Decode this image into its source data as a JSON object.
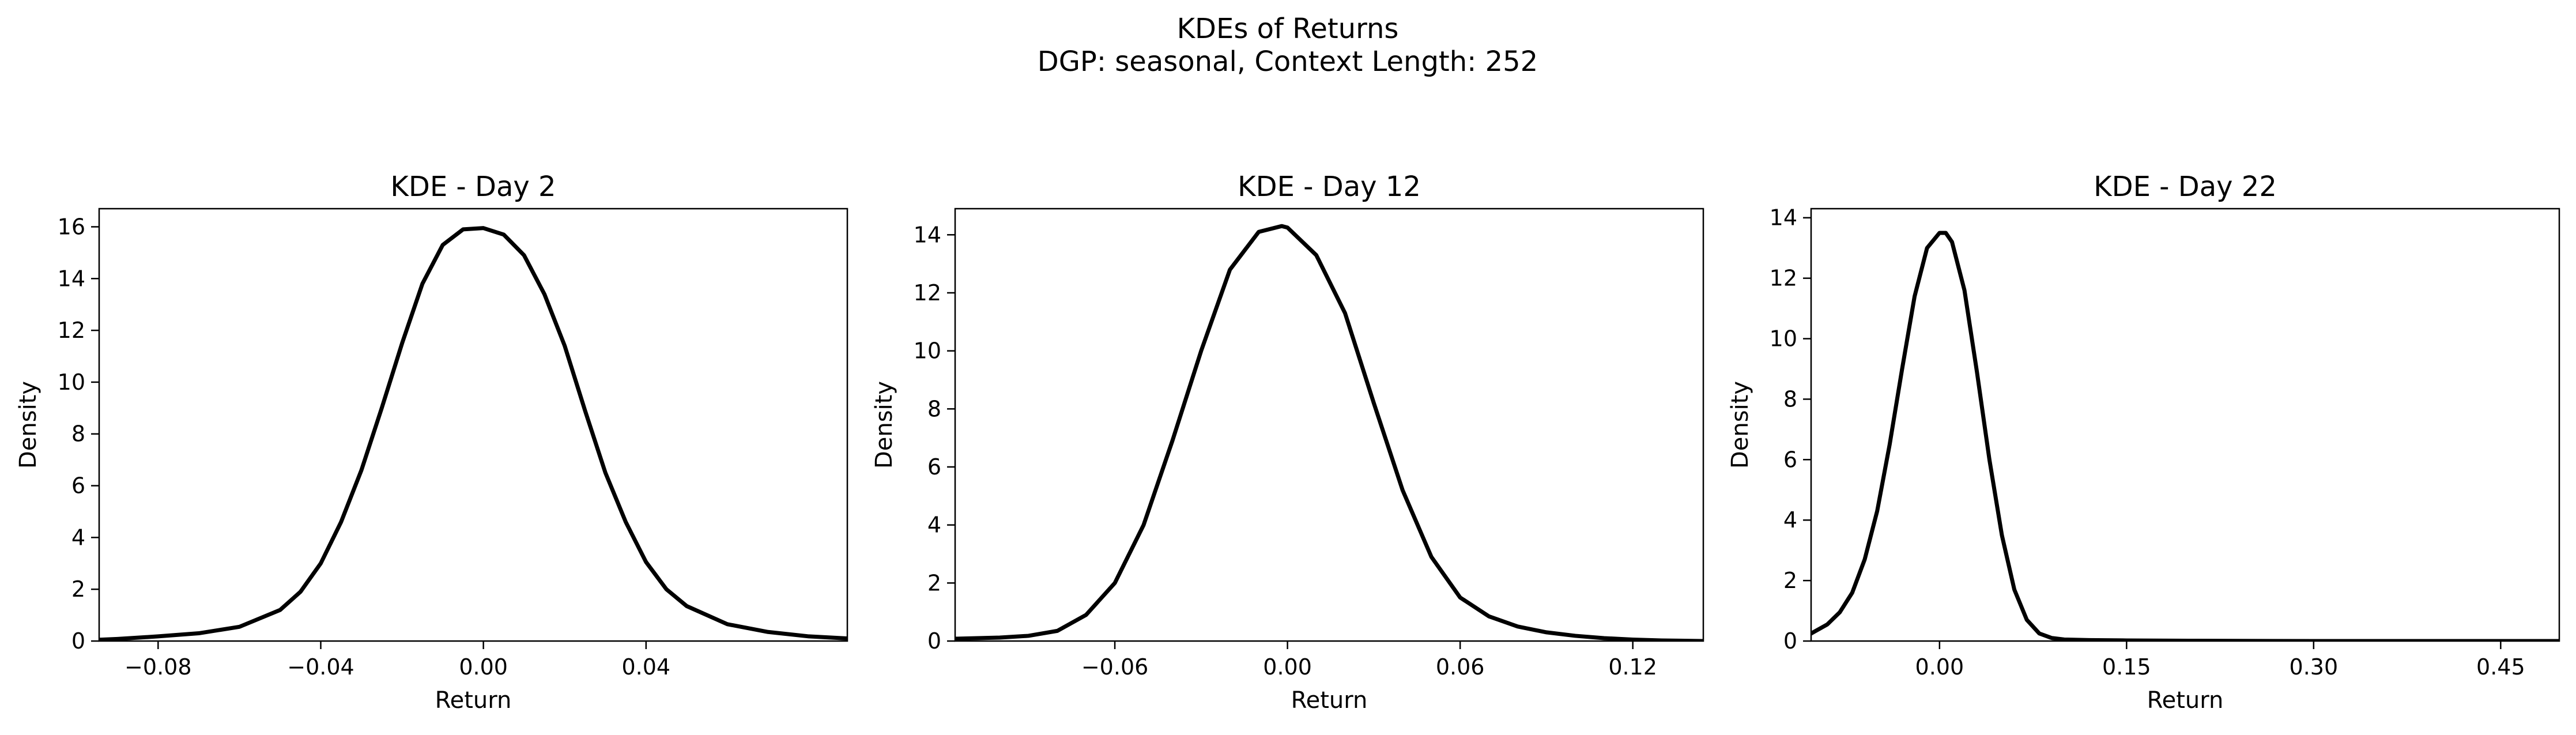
{
  "figure": {
    "title": "KDEs of Returns",
    "subtitle": "DGP: seasonal, Context Length: 252"
  },
  "chart_data": [
    {
      "type": "line",
      "title": "KDE - Day 2",
      "xlabel": "Return",
      "ylabel": "Density",
      "xlim": [
        -0.0945,
        0.0895
      ],
      "ylim": [
        0,
        16.7
      ],
      "xticks": [
        -0.08,
        -0.04,
        0.0,
        0.04
      ],
      "xtick_labels": [
        "−0.08",
        "−0.04",
        "0.00",
        "0.04"
      ],
      "yticks": [
        0,
        2,
        4,
        6,
        8,
        10,
        12,
        14,
        16
      ],
      "ytick_labels": [
        "0",
        "2",
        "4",
        "6",
        "8",
        "10",
        "12",
        "14",
        "16"
      ],
      "grid": false,
      "series": [
        {
          "color": "#000000",
          "x": [
            -0.0945,
            -0.09,
            -0.08,
            -0.07,
            -0.06,
            -0.05,
            -0.045,
            -0.04,
            -0.035,
            -0.03,
            -0.025,
            -0.02,
            -0.015,
            -0.01,
            -0.005,
            0.0,
            0.005,
            0.01,
            0.015,
            0.02,
            0.025,
            0.03,
            0.035,
            0.04,
            0.045,
            0.05,
            0.06,
            0.07,
            0.08,
            0.0895
          ],
          "y": [
            0.05,
            0.08,
            0.18,
            0.3,
            0.55,
            1.2,
            1.9,
            3.0,
            4.6,
            6.6,
            9.0,
            11.5,
            13.8,
            15.3,
            15.9,
            15.95,
            15.7,
            14.9,
            13.4,
            11.4,
            8.9,
            6.5,
            4.6,
            3.05,
            2.0,
            1.35,
            0.65,
            0.35,
            0.18,
            0.1
          ]
        }
      ]
    },
    {
      "type": "line",
      "title": "KDE - Day 12",
      "xlabel": "Return",
      "ylabel": "Density",
      "xlim": [
        -0.1155,
        0.1445
      ],
      "ylim": [
        0,
        14.9
      ],
      "xticks": [
        -0.06,
        0.0,
        0.06,
        0.12
      ],
      "xtick_labels": [
        "−0.06",
        "0.00",
        "0.06",
        "0.12"
      ],
      "yticks": [
        0,
        2,
        4,
        6,
        8,
        10,
        12,
        14
      ],
      "ytick_labels": [
        "0",
        "2",
        "4",
        "6",
        "8",
        "10",
        "12",
        "14"
      ],
      "grid": false,
      "series": [
        {
          "color": "#000000",
          "x": [
            -0.1155,
            -0.1,
            -0.09,
            -0.08,
            -0.07,
            -0.06,
            -0.05,
            -0.04,
            -0.03,
            -0.02,
            -0.01,
            -0.002,
            0.0,
            0.01,
            0.02,
            0.03,
            0.04,
            0.05,
            0.06,
            0.07,
            0.08,
            0.09,
            0.1,
            0.11,
            0.12,
            0.13,
            0.1445
          ],
          "y": [
            0.08,
            0.12,
            0.18,
            0.35,
            0.9,
            2.0,
            4.0,
            6.9,
            10.0,
            12.8,
            14.1,
            14.3,
            14.25,
            13.3,
            11.3,
            8.2,
            5.2,
            2.9,
            1.5,
            0.85,
            0.5,
            0.3,
            0.18,
            0.1,
            0.05,
            0.02,
            0.0
          ]
        }
      ]
    },
    {
      "type": "line",
      "title": "KDE - Day 22",
      "xlabel": "Return",
      "ylabel": "Density",
      "xlim": [
        -0.103,
        0.497
      ],
      "ylim": [
        0,
        14.3
      ],
      "xticks": [
        0.0,
        0.15,
        0.3,
        0.45
      ],
      "xtick_labels": [
        "0.00",
        "0.15",
        "0.30",
        "0.45"
      ],
      "yticks": [
        0,
        2,
        4,
        6,
        8,
        10,
        12,
        14
      ],
      "ytick_labels": [
        "0",
        "2",
        "4",
        "6",
        "8",
        "10",
        "12",
        "14"
      ],
      "grid": false,
      "series": [
        {
          "color": "#000000",
          "x": [
            -0.103,
            -0.09,
            -0.08,
            -0.07,
            -0.06,
            -0.05,
            -0.04,
            -0.03,
            -0.02,
            -0.01,
            0.0,
            0.005,
            0.01,
            0.02,
            0.03,
            0.04,
            0.05,
            0.06,
            0.07,
            0.08,
            0.09,
            0.1,
            0.12,
            0.15,
            0.2,
            0.3,
            0.4,
            0.497
          ],
          "y": [
            0.25,
            0.55,
            0.95,
            1.6,
            2.7,
            4.3,
            6.5,
            9.0,
            11.4,
            13.0,
            13.5,
            13.5,
            13.2,
            11.6,
            8.9,
            6.0,
            3.5,
            1.7,
            0.7,
            0.25,
            0.1,
            0.05,
            0.03,
            0.02,
            0.01,
            0.0,
            0.0,
            0.0
          ]
        }
      ]
    }
  ]
}
